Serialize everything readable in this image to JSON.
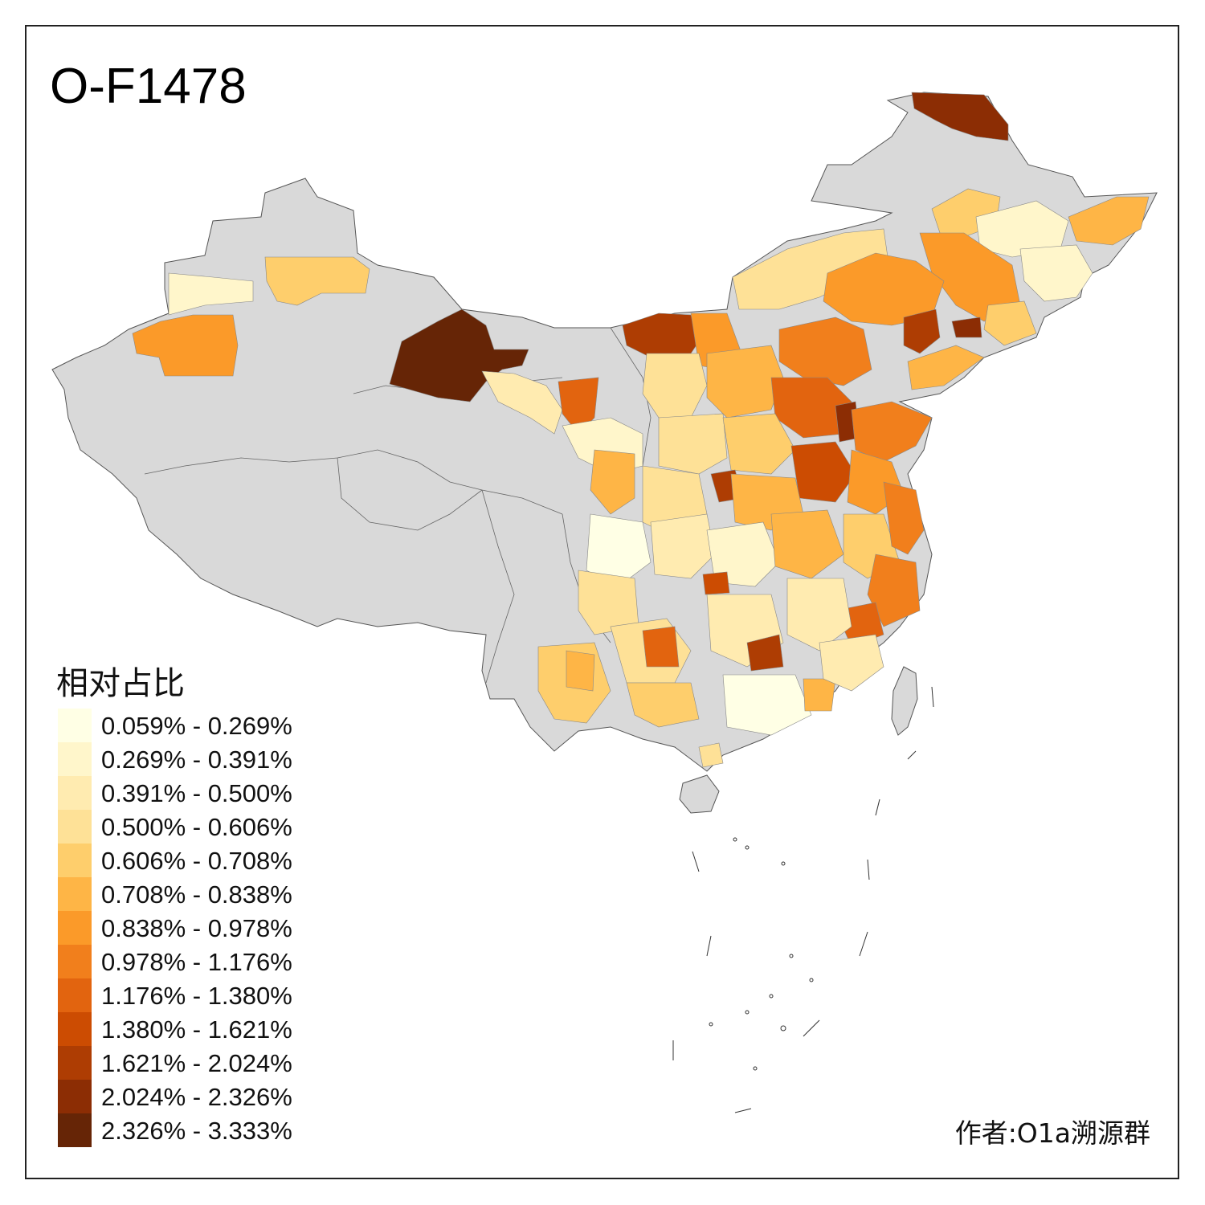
{
  "title": "O-F1478",
  "legend": {
    "title": "相对占比",
    "items": [
      {
        "label": "0.059% - 0.269%",
        "color": "#FFFFE5"
      },
      {
        "label": "0.269% - 0.391%",
        "color": "#FFF6CB"
      },
      {
        "label": "0.391% - 0.500%",
        "color": "#FFEBB0"
      },
      {
        "label": "0.500% - 0.606%",
        "color": "#FEE197"
      },
      {
        "label": "0.606% - 0.708%",
        "color": "#FECE6C"
      },
      {
        "label": "0.708% - 0.838%",
        "color": "#FEB546"
      },
      {
        "label": "0.838% - 0.978%",
        "color": "#FB9A29"
      },
      {
        "label": "0.978% - 1.176%",
        "color": "#F17F1C"
      },
      {
        "label": "1.176% - 1.380%",
        "color": "#E2640F"
      },
      {
        "label": "1.380% - 1.621%",
        "color": "#CC4C02"
      },
      {
        "label": "1.621% - 2.024%",
        "color": "#AE3D03"
      },
      {
        "label": "2.024% - 2.326%",
        "color": "#8C2D04"
      },
      {
        "label": "2.326% - 3.333%",
        "color": "#662506"
      }
    ]
  },
  "credit": "作者:O1a溯源群",
  "colors": {
    "no_data": "#D9D9D9",
    "border": "#555555",
    "frame": "#222222"
  }
}
